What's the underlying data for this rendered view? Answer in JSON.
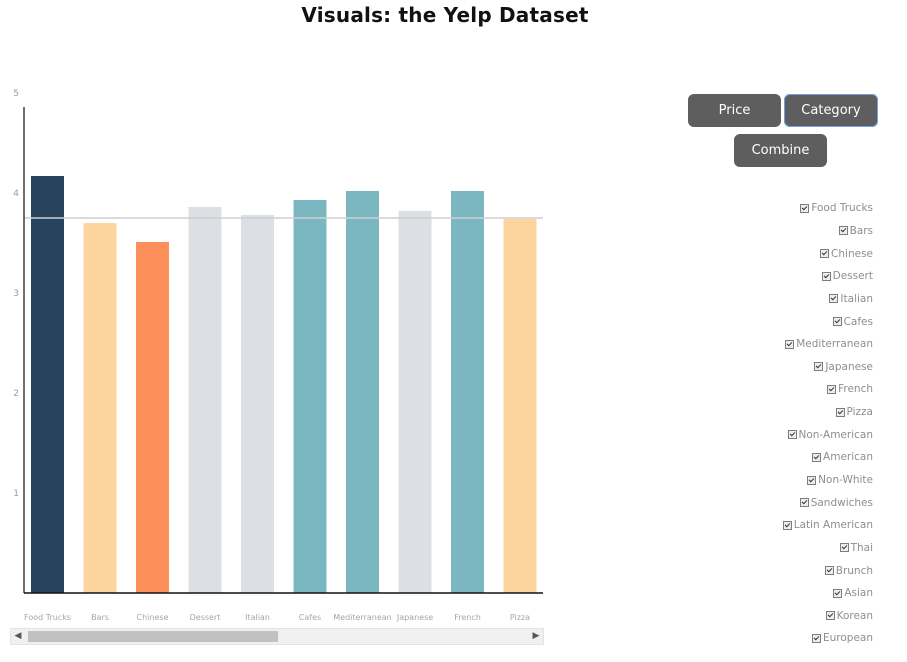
{
  "title": "Visuals: the Yelp Dataset",
  "buttons": {
    "price": "Price",
    "category": "Category",
    "combine": "Combine"
  },
  "categories": [
    {
      "label": "Food Trucks",
      "checked": true
    },
    {
      "label": "Bars",
      "checked": true
    },
    {
      "label": "Chinese",
      "checked": true
    },
    {
      "label": "Dessert",
      "checked": true
    },
    {
      "label": "Italian",
      "checked": true
    },
    {
      "label": "Cafes",
      "checked": true
    },
    {
      "label": "Mediterranean",
      "checked": true
    },
    {
      "label": "Japanese",
      "checked": true
    },
    {
      "label": "French",
      "checked": true
    },
    {
      "label": "Pizza",
      "checked": true
    },
    {
      "label": "Non-American",
      "checked": true
    },
    {
      "label": "American",
      "checked": true
    },
    {
      "label": "Non-White",
      "checked": true
    },
    {
      "label": "Sandwiches",
      "checked": true
    },
    {
      "label": "Latin American",
      "checked": true
    },
    {
      "label": "Thai",
      "checked": true
    },
    {
      "label": "Brunch",
      "checked": true
    },
    {
      "label": "Asian",
      "checked": true
    },
    {
      "label": "Korean",
      "checked": true
    },
    {
      "label": "European",
      "checked": true
    }
  ],
  "scrollbar": {
    "left_arrow": "◀",
    "right_arrow": "▶"
  },
  "chart_data": {
    "type": "bar",
    "categories": [
      "Food Trucks",
      "Bars",
      "Chinese",
      "Dessert",
      "Italian",
      "Cafes",
      "Mediterranean",
      "Japanese",
      "French",
      "Pizza"
    ],
    "values": [
      4.17,
      3.7,
      3.51,
      3.86,
      3.78,
      3.93,
      4.02,
      3.82,
      4.02,
      3.74
    ],
    "colors": [
      "#27445e",
      "#fdd49d",
      "#fc8f5a",
      "#dcdfe3",
      "#dcdfe3",
      "#7bb7c1",
      "#7bb7c1",
      "#dcdfe3",
      "#7bb7c1",
      "#fdd49d"
    ],
    "reference_line": 3.75,
    "yticks": [
      "",
      "1",
      "2",
      "3",
      "4",
      "5"
    ],
    "ylim": [
      0,
      5
    ],
    "xlabel": "",
    "ylabel": "",
    "grid": false
  }
}
